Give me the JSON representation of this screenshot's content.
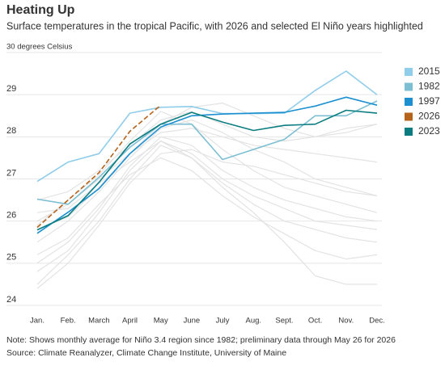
{
  "chart_data": {
    "type": "line",
    "title": "Heating Up",
    "subtitle": "Surface temperatures in the tropical Pacific, with 2026 and selected El Niño years highlighted",
    "notes": [
      "Note: Shows monthly average for Niño 3.4 region since 1982; preliminary data through May 26 for 2026",
      "Source: Climate Reanalyzer, Climate Change Institute, University of Maine"
    ],
    "categories": [
      "Jan.",
      "Feb.",
      "March",
      "April",
      "May",
      "June",
      "July",
      "Aug.",
      "Sept.",
      "Oct.",
      "Nov.",
      "Dec."
    ],
    "ylim": [
      24,
      30
    ],
    "yticks": [
      24,
      25,
      26,
      27,
      28,
      29,
      {
        "value": 30,
        "label": "30 degrees Celsius"
      }
    ],
    "grid": true,
    "legend": "right",
    "series": [
      {
        "color": "#e3e3e3",
        "values": [
          25.0,
          25.5,
          26.3,
          27.3,
          28.0,
          27.8,
          27.2,
          26.8,
          26.5,
          26.3,
          26.1,
          26.0
        ]
      },
      {
        "color": "#e3e3e3",
        "values": [
          24.5,
          25.2,
          26.0,
          27.0,
          27.8,
          27.5,
          26.9,
          26.4,
          26.0,
          25.8,
          25.6,
          25.5
        ]
      },
      {
        "color": "#e3e3e3",
        "values": [
          26.0,
          26.4,
          27.0,
          27.6,
          28.1,
          28.2,
          28.0,
          27.8,
          27.7,
          27.6,
          27.5,
          27.4
        ]
      },
      {
        "color": "#e3e3e3",
        "values": [
          25.5,
          26.0,
          26.7,
          27.5,
          28.2,
          28.4,
          28.1,
          27.7,
          27.4,
          27.0,
          26.8,
          26.6
        ]
      },
      {
        "color": "#e3e3e3",
        "values": [
          25.2,
          25.6,
          26.4,
          27.1,
          27.5,
          27.2,
          26.6,
          26.1,
          25.7,
          25.3,
          25.1,
          25.2
        ]
      },
      {
        "color": "#e3e3e3",
        "values": [
          26.5,
          26.7,
          27.2,
          27.8,
          28.4,
          28.6,
          28.3,
          28.0,
          27.9,
          28.0,
          28.2,
          28.3
        ]
      },
      {
        "color": "#e3e3e3",
        "values": [
          25.8,
          26.1,
          26.8,
          27.6,
          28.3,
          28.7,
          28.8,
          28.5,
          28.2,
          28.0,
          28.1,
          28.3
        ]
      },
      {
        "color": "#e3e3e3",
        "values": [
          24.8,
          25.3,
          26.2,
          27.2,
          27.9,
          27.6,
          27.0,
          26.6,
          26.3,
          26.0,
          25.9,
          25.8
        ]
      },
      {
        "color": "#e3e3e3",
        "values": [
          26.2,
          26.3,
          26.9,
          27.4,
          27.9,
          27.5,
          26.8,
          26.2,
          25.5,
          24.7,
          24.5,
          24.5
        ]
      },
      {
        "color": "#e3e3e3",
        "values": [
          25.9,
          26.5,
          27.1,
          27.9,
          28.6,
          28.3,
          27.7,
          27.2,
          26.8,
          26.6,
          26.4,
          26.2
        ]
      },
      {
        "color": "#e3e3e3",
        "values": [
          24.4,
          25.0,
          25.9,
          26.9,
          27.6,
          27.7,
          27.4,
          27.3,
          27.1,
          26.9,
          26.7,
          26.6
        ]
      },
      {
        "name": "2015",
        "color": "#8fcdea",
        "values": [
          26.94,
          27.4,
          27.6,
          28.56,
          28.7,
          28.72,
          28.55,
          28.55,
          28.56,
          29.1,
          29.56,
          29.0
        ]
      },
      {
        "name": "1982",
        "color": "#7cbfd2",
        "values": [
          26.52,
          26.4,
          27.04,
          27.75,
          28.3,
          28.3,
          27.46,
          27.7,
          27.94,
          28.5,
          28.5,
          28.85
        ]
      },
      {
        "name": "1997",
        "color": "#1b8fd0",
        "values": [
          25.71,
          26.21,
          26.77,
          27.6,
          28.23,
          28.5,
          28.54,
          28.56,
          28.58,
          28.73,
          28.94,
          28.75
        ]
      },
      {
        "name": "2026",
        "color": "#b5621b",
        "line_style": "dashed",
        "values": [
          25.85,
          26.5,
          27.15,
          28.13,
          28.75,
          null,
          null,
          null,
          null,
          null,
          null,
          null
        ]
      },
      {
        "name": "2023",
        "color": "#0b7d80",
        "values": [
          25.79,
          26.13,
          26.92,
          27.83,
          28.3,
          28.58,
          28.35,
          28.15,
          28.27,
          28.3,
          28.63,
          28.56
        ]
      }
    ]
  }
}
